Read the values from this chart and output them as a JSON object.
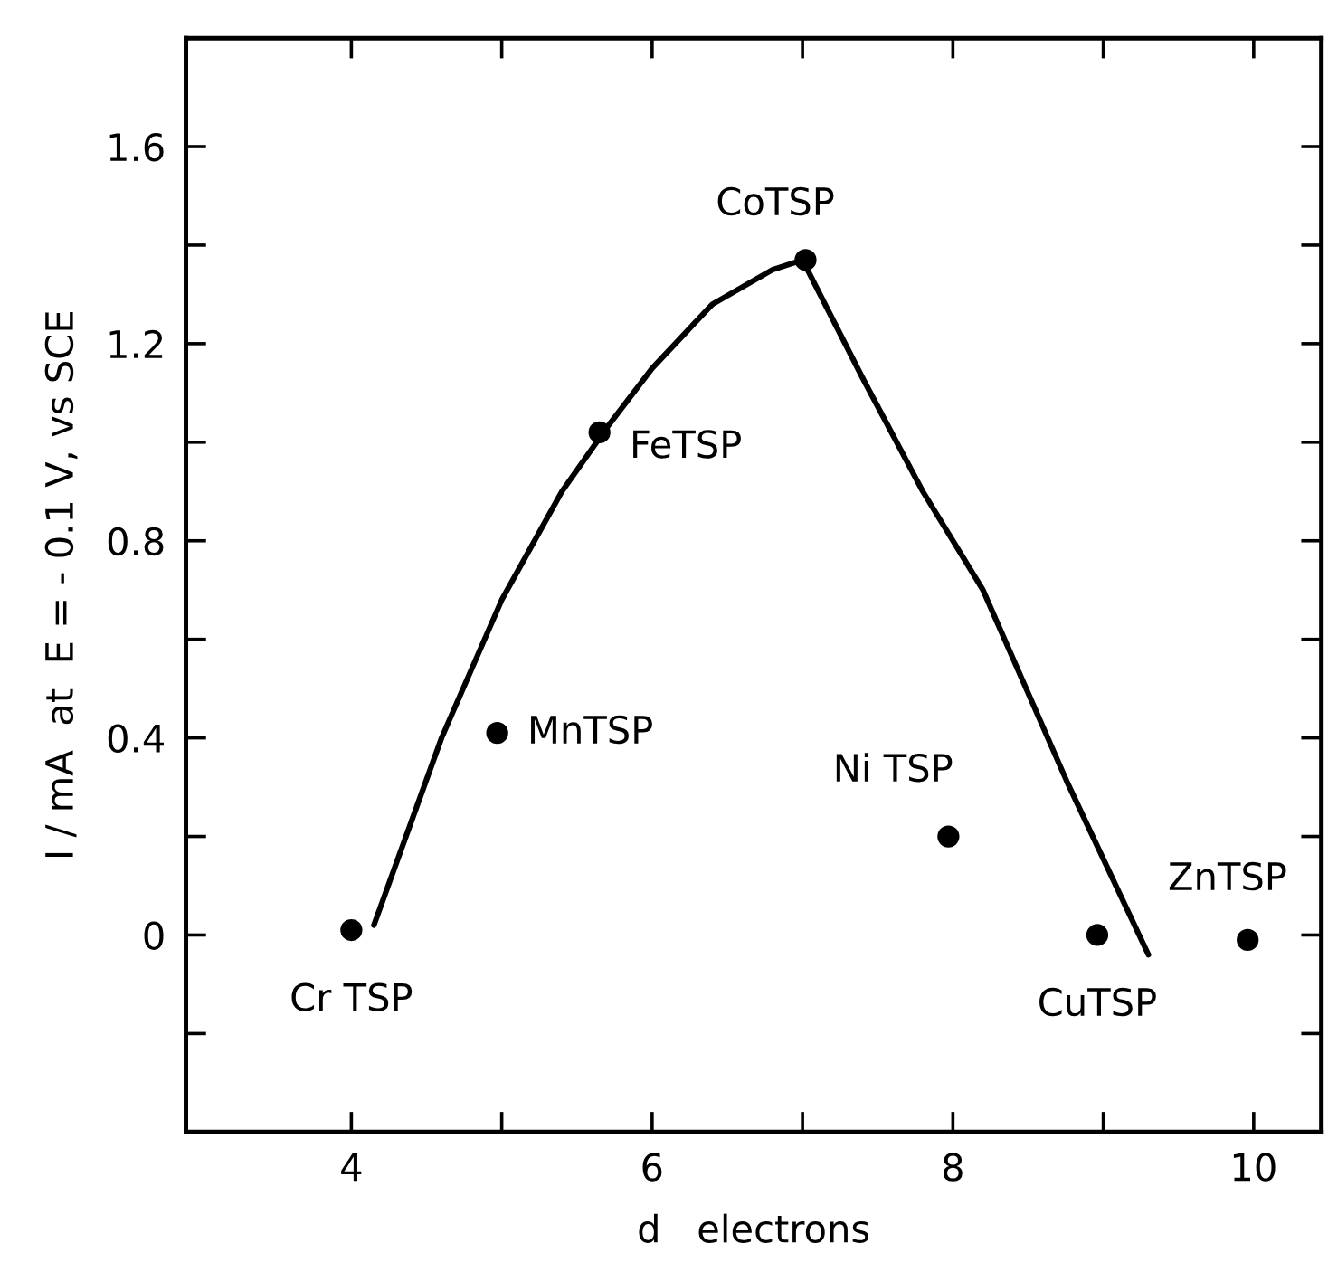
{
  "chart_data": {
    "type": "scatter",
    "xlabel": "d   electrons",
    "ylabel": "I / mA  at  E = - 0.1 V, vs SCE",
    "xlim": [
      2.9,
      10.45
    ],
    "ylim": [
      -0.4,
      1.82
    ],
    "xticks": [
      4,
      {
        "value": 5,
        "label": null
      },
      6,
      {
        "value": 7,
        "label": null
      },
      8,
      {
        "value": 9,
        "label": null
      },
      10
    ],
    "yticks": [
      {
        "value": -0.2,
        "label": null
      },
      0,
      {
        "value": 0.2,
        "label": null
      },
      {
        "value": 0.4,
        "label": "0.4"
      },
      {
        "value": 0.6,
        "label": null
      },
      {
        "value": 0.8,
        "label": "0.8"
      },
      {
        "value": 1.0,
        "label": null
      },
      {
        "value": 1.2,
        "label": "1.2"
      },
      {
        "value": 1.4,
        "label": null
      },
      {
        "value": 1.6,
        "label": "1.6"
      }
    ],
    "grid": false,
    "legend": false,
    "series": [
      {
        "marker": "circle",
        "color": "#000000",
        "x": [
          4.0,
          4.97,
          5.65,
          7.02,
          7.97,
          8.96,
          9.96
        ],
        "values": [
          0.01,
          0.41,
          1.02,
          1.37,
          0.2,
          0.0,
          -0.01
        ]
      },
      {
        "type": "line",
        "marker": "none",
        "color": "#000000",
        "line_style": "solid",
        "x": [
          4.15,
          4.6,
          5.0,
          5.4,
          5.7,
          6.0,
          6.4,
          6.8,
          7.0,
          7.4,
          7.8,
          8.2,
          8.76,
          9.3
        ],
        "values": [
          0.02,
          0.4,
          0.68,
          0.9,
          1.03,
          1.15,
          1.28,
          1.35,
          1.37,
          1.13,
          0.9,
          0.7,
          0.31,
          -0.04
        ]
      }
    ],
    "annotations": [
      {
        "text": "Cr TSP",
        "x": 4.0,
        "y": 0.01
      },
      {
        "text": "MnTSP",
        "x": 4.97,
        "y": 0.41
      },
      {
        "text": "FeTSP",
        "x": 5.65,
        "y": 1.02
      },
      {
        "text": "CoTSP",
        "x": 7.02,
        "y": 1.37
      },
      {
        "text": "Ni TSP",
        "x": 7.97,
        "y": 0.2
      },
      {
        "text": "CuTSP",
        "x": 8.96,
        "y": 0.0
      },
      {
        "text": "ZnTSP",
        "x": 9.96,
        "y": -0.01
      }
    ]
  }
}
